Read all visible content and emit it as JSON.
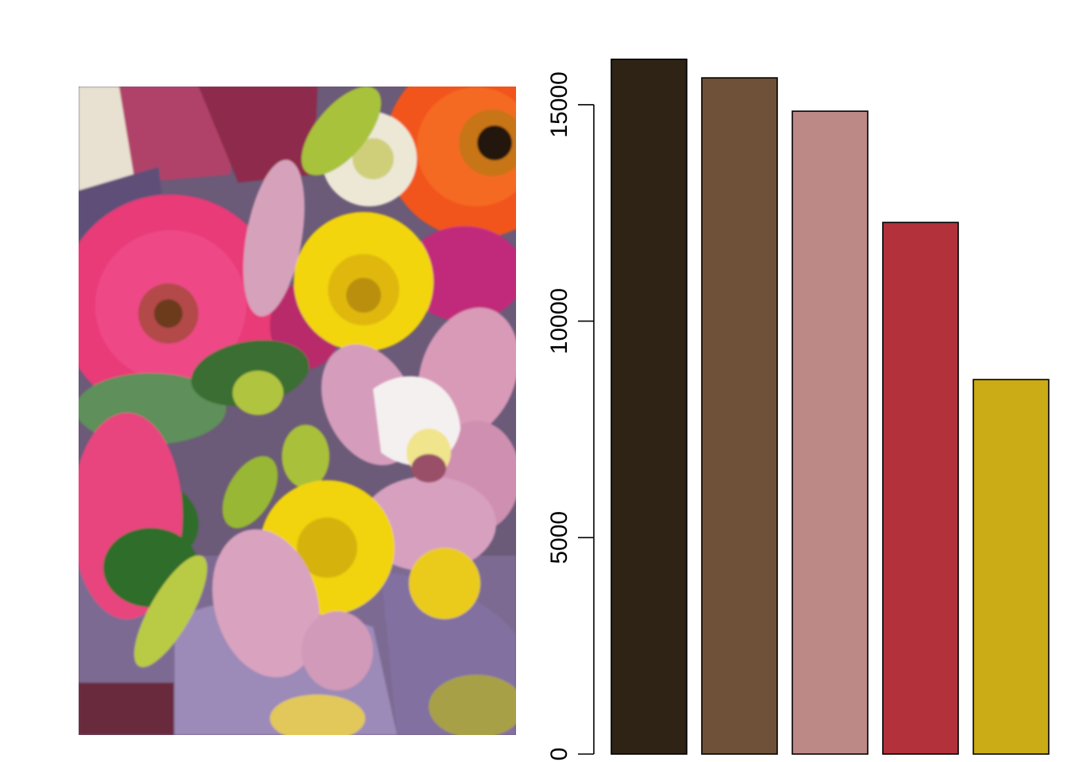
{
  "photo": {
    "subject": "flower-bouquet-photo",
    "palette": {
      "background": "#6b5a78",
      "pink": "#e83a78",
      "orange": "#f2541d",
      "yellow": "#f3d50c",
      "orchid": "#d99ab8",
      "green": "#3f7d3a",
      "lime": "#a8c23a",
      "purple": "#8e7aa8",
      "white": "#f1ece2",
      "dark": "#2e1f2e"
    }
  },
  "chart_data": {
    "type": "bar",
    "title": "",
    "xlabel": "",
    "ylabel": "",
    "ylim": [
      0,
      16000
    ],
    "yticks": [
      0,
      5000,
      10000,
      15000
    ],
    "ytick_labels": [
      "0",
      "5000",
      "10000",
      "15000"
    ],
    "grid": false,
    "legend": "none",
    "categories": [
      "#2f2316",
      "#6e5138",
      "#bd8987",
      "#b2313b",
      "#cbab16"
    ],
    "values": [
      16050,
      15620,
      14850,
      12280,
      8650
    ],
    "colors": [
      "#2f2316",
      "#6e5138",
      "#bd8987",
      "#b2313b",
      "#cbab16"
    ]
  }
}
